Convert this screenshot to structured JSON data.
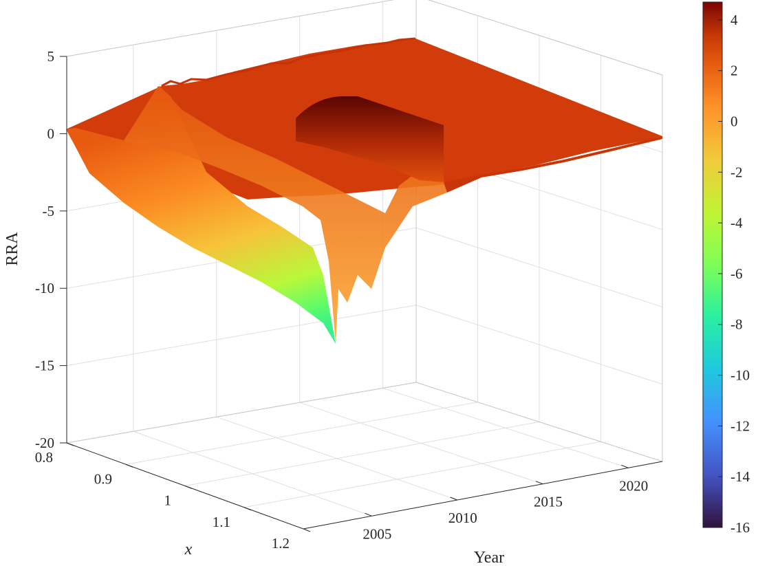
{
  "chart_data": {
    "type": "surface",
    "zlabel": "RRA",
    "xlabel": "Year",
    "ylabel": "x",
    "xlim": [
      2001,
      2022
    ],
    "ylim": [
      0.8,
      1.2
    ],
    "zlim": [
      -20,
      5
    ],
    "x_ticks": [
      "2005",
      "2010",
      "2015",
      "2020"
    ],
    "y_ticks": [
      "0.8",
      "0.9",
      "1",
      "1.1",
      "1.2"
    ],
    "z_ticks": [
      "5",
      "0",
      "-5",
      "-10",
      "-15",
      "-20"
    ],
    "colorbar": {
      "range": [
        -16,
        4.7
      ],
      "ticks": [
        "4",
        "2",
        "0",
        "-2",
        "-4",
        "-6",
        "-8",
        "-10",
        "-12",
        "-14",
        "-16"
      ],
      "colormap": "turbo"
    },
    "surface_notes": {
      "flat_level_recent_years": 2.3,
      "minimum_value": -13.5,
      "minimum_at": {
        "year": 2008.5,
        "x": 1.2
      },
      "peak_value": 4.7,
      "peak_at": {
        "year": 2012,
        "x": 0.95
      }
    }
  }
}
